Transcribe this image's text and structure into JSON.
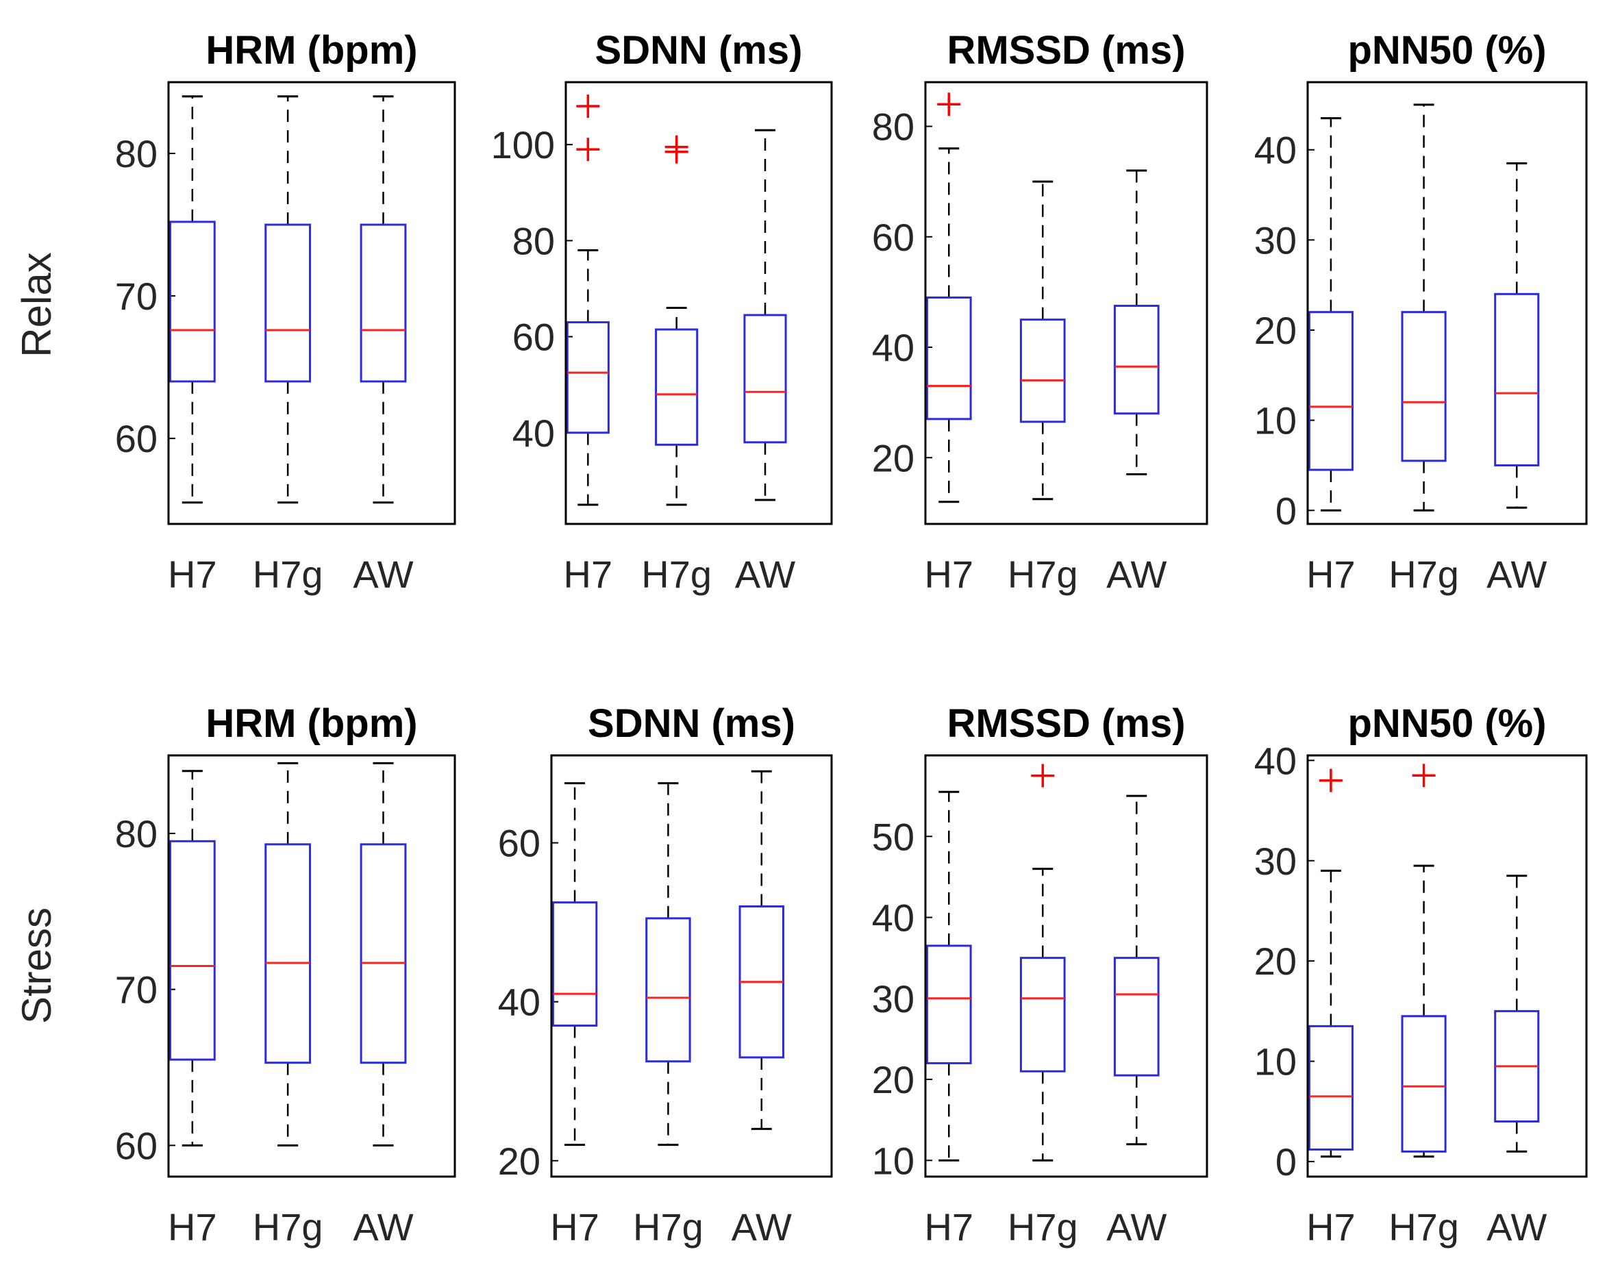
{
  "chart_data": [
    {
      "type": "box",
      "row": "Relax",
      "title": "HRM (bpm)",
      "categories": [
        "H7",
        "H7g",
        "AW"
      ],
      "ylim": [
        54,
        85
      ],
      "yticks": [
        60,
        70,
        80
      ],
      "boxes": [
        {
          "lower_whisker": 55.5,
          "q1": 64,
          "median": 67.6,
          "q3": 75.2,
          "upper_whisker": 84,
          "outliers": []
        },
        {
          "lower_whisker": 55.5,
          "q1": 64,
          "median": 67.6,
          "q3": 75.0,
          "upper_whisker": 84,
          "outliers": []
        },
        {
          "lower_whisker": 55.5,
          "q1": 64,
          "median": 67.6,
          "q3": 75.0,
          "upper_whisker": 84,
          "outliers": []
        }
      ]
    },
    {
      "type": "box",
      "row": "Relax",
      "title": "SDNN (ms)",
      "categories": [
        "H7",
        "H7g",
        "AW"
      ],
      "ylim": [
        21,
        113
      ],
      "yticks": [
        40,
        60,
        80,
        100
      ],
      "boxes": [
        {
          "lower_whisker": 25,
          "q1": 40,
          "median": 52.5,
          "q3": 63,
          "upper_whisker": 78,
          "outliers": [
            108,
            99
          ]
        },
        {
          "lower_whisker": 25,
          "q1": 37.5,
          "median": 48,
          "q3": 61.5,
          "upper_whisker": 66,
          "outliers": [
            99.5,
            98.5
          ]
        },
        {
          "lower_whisker": 26,
          "q1": 38,
          "median": 48.5,
          "q3": 64.5,
          "upper_whisker": 103,
          "outliers": []
        }
      ]
    },
    {
      "type": "box",
      "row": "Relax",
      "title": "RMSSD (ms)",
      "categories": [
        "H7",
        "H7g",
        "AW"
      ],
      "ylim": [
        8,
        88
      ],
      "yticks": [
        20,
        40,
        60,
        80
      ],
      "boxes": [
        {
          "lower_whisker": 12,
          "q1": 27,
          "median": 33,
          "q3": 49,
          "upper_whisker": 76,
          "outliers": [
            84
          ]
        },
        {
          "lower_whisker": 12.5,
          "q1": 26.5,
          "median": 34,
          "q3": 45,
          "upper_whisker": 70,
          "outliers": []
        },
        {
          "lower_whisker": 17,
          "q1": 28,
          "median": 36.5,
          "q3": 47.5,
          "upper_whisker": 72,
          "outliers": []
        }
      ]
    },
    {
      "type": "box",
      "row": "Relax",
      "title": "pNN50 (%)",
      "categories": [
        "H7",
        "H7g",
        "AW"
      ],
      "ylim": [
        -1.5,
        47.5
      ],
      "yticks": [
        0,
        10,
        20,
        30,
        40
      ],
      "boxes": [
        {
          "lower_whisker": 0,
          "q1": 4.5,
          "median": 11.5,
          "q3": 22,
          "upper_whisker": 43.5,
          "outliers": []
        },
        {
          "lower_whisker": 0,
          "q1": 5.5,
          "median": 12,
          "q3": 22,
          "upper_whisker": 45,
          "outliers": []
        },
        {
          "lower_whisker": 0.3,
          "q1": 5,
          "median": 13,
          "q3": 24,
          "upper_whisker": 38.5,
          "outliers": []
        }
      ]
    },
    {
      "type": "box",
      "row": "Stress",
      "title": "HRM (bpm)",
      "categories": [
        "H7",
        "H7g",
        "AW"
      ],
      "ylim": [
        58,
        85
      ],
      "yticks": [
        60,
        70,
        80
      ],
      "boxes": [
        {
          "lower_whisker": 60,
          "q1": 65.5,
          "median": 71.5,
          "q3": 79.5,
          "upper_whisker": 84,
          "outliers": []
        },
        {
          "lower_whisker": 60,
          "q1": 65.3,
          "median": 71.7,
          "q3": 79.3,
          "upper_whisker": 84.5,
          "outliers": []
        },
        {
          "lower_whisker": 60,
          "q1": 65.3,
          "median": 71.7,
          "q3": 79.3,
          "upper_whisker": 84.5,
          "outliers": []
        }
      ]
    },
    {
      "type": "box",
      "row": "Stress",
      "title": "SDNN (ms)",
      "categories": [
        "H7",
        "H7g",
        "AW"
      ],
      "ylim": [
        18,
        71
      ],
      "yticks": [
        20,
        40,
        60
      ],
      "boxes": [
        {
          "lower_whisker": 22,
          "q1": 37,
          "median": 41,
          "q3": 52.5,
          "upper_whisker": 67.5,
          "outliers": []
        },
        {
          "lower_whisker": 22,
          "q1": 32.5,
          "median": 40.5,
          "q3": 50.5,
          "upper_whisker": 67.5,
          "outliers": []
        },
        {
          "lower_whisker": 24,
          "q1": 33,
          "median": 42.5,
          "q3": 52,
          "upper_whisker": 69,
          "outliers": []
        }
      ]
    },
    {
      "type": "box",
      "row": "Stress",
      "title": "RMSSD (ms)",
      "categories": [
        "H7",
        "H7g",
        "AW"
      ],
      "ylim": [
        8,
        60
      ],
      "yticks": [
        10,
        20,
        30,
        40,
        50
      ],
      "boxes": [
        {
          "lower_whisker": 10,
          "q1": 22,
          "median": 30,
          "q3": 36.5,
          "upper_whisker": 55.5,
          "outliers": []
        },
        {
          "lower_whisker": 10,
          "q1": 21,
          "median": 30,
          "q3": 35,
          "upper_whisker": 46,
          "outliers": [
            57.5
          ]
        },
        {
          "lower_whisker": 12,
          "q1": 20.5,
          "median": 30.5,
          "q3": 35,
          "upper_whisker": 55,
          "outliers": []
        }
      ]
    },
    {
      "type": "box",
      "row": "Stress",
      "title": "pNN50 (%)",
      "categories": [
        "H7",
        "H7g",
        "AW"
      ],
      "ylim": [
        -1.5,
        40.5
      ],
      "yticks": [
        0,
        10,
        20,
        30,
        40
      ],
      "boxes": [
        {
          "lower_whisker": 0.5,
          "q1": 1.2,
          "median": 6.5,
          "q3": 13.5,
          "upper_whisker": 29,
          "outliers": [
            38
          ]
        },
        {
          "lower_whisker": 0.5,
          "q1": 1,
          "median": 7.5,
          "q3": 14.5,
          "upper_whisker": 29.5,
          "outliers": [
            38.5
          ]
        },
        {
          "lower_whisker": 1,
          "q1": 4,
          "median": 9.5,
          "q3": 15,
          "upper_whisker": 28.5,
          "outliers": []
        }
      ]
    }
  ],
  "row_labels": [
    "Relax",
    "Stress"
  ],
  "colors": {
    "box": "#2b2bdc",
    "median": "#ff2020",
    "whisker": "#000000",
    "outlier": "#ff0000",
    "axis": "#000000",
    "tick_text": "#262626"
  }
}
